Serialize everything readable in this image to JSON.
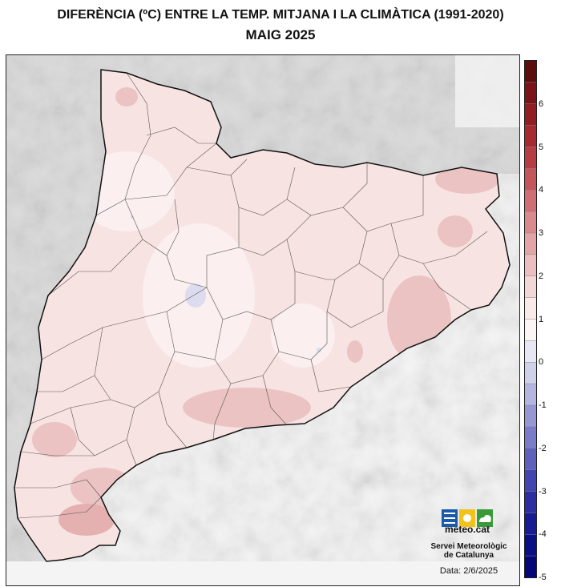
{
  "title": "DIFERÈNCIA (ºC) ENTRE LA TEMP. MITJANA I LA CLIMÀTICA (1991-2020)",
  "subtitle": "MAIG 2025",
  "colorbar": {
    "ticks": [
      "6",
      "5",
      "4",
      "3",
      "2",
      "1",
      "0",
      "-1",
      "-2",
      "-3",
      "-4",
      "-5"
    ],
    "colors": [
      "#5c0d0d",
      "#7a1419",
      "#921d23",
      "#a82a31",
      "#b73d44",
      "#c4555b",
      "#cf6e74",
      "#d98a8e",
      "#e2a4a6",
      "#ebbfc0",
      "#f3d6d6",
      "#f9e9e9",
      "#fdf4f4",
      "#e7e7f4",
      "#cfd0ea",
      "#b4b6e0",
      "#9698d4",
      "#7a7cc8",
      "#5e60bc",
      "#4345b0",
      "#2c2ea2",
      "#191b94",
      "#0c0e86",
      "#050778"
    ]
  },
  "logo": {
    "name": "meteo.cat",
    "icon": "meteo-cat-logo-icon"
  },
  "organization": [
    "Servei Meteorològic",
    "de Catalunya"
  ],
  "date_label": "Data: 2/6/2025",
  "colors": {
    "map_fill": "#f8e3e3",
    "warm_patch": "#ebc3c3",
    "cool_patch": "#dcdcee",
    "sea": "#f4f4f4",
    "relief": "#cfcfcf"
  }
}
